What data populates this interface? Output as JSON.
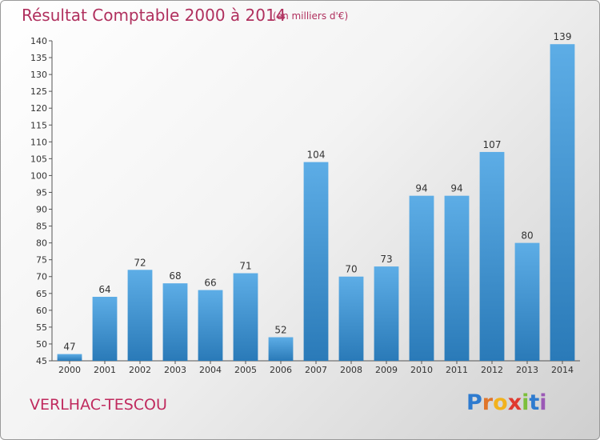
{
  "page": {
    "title": "Résultat Comptable 2000 à 2014",
    "subtitle": "(en milliers d'€)",
    "town": "VERLHAC-TESCOU",
    "logo": {
      "letters": [
        "P",
        "r",
        "o",
        "x",
        "i",
        "t",
        "i"
      ],
      "colors": [
        "#2e7bcf",
        "#e0752a",
        "#f2b21d",
        "#e03a2f",
        "#7cbf3a",
        "#2e7bcf",
        "#9b59b6"
      ]
    }
  },
  "chart_data": {
    "type": "bar",
    "title": "Résultat Comptable 2000 à 2014",
    "subtitle": "(en milliers d'€)",
    "categories": [
      "2000",
      "2001",
      "2002",
      "2003",
      "2004",
      "2005",
      "2006",
      "2007",
      "2008",
      "2009",
      "2010",
      "2011",
      "2012",
      "2013",
      "2014"
    ],
    "values": [
      47,
      64,
      72,
      68,
      66,
      71,
      52,
      104,
      70,
      73,
      94,
      94,
      107,
      80,
      139
    ],
    "value_labels": [
      "47",
      "64",
      "72",
      "68",
      "66",
      "71",
      "52",
      "104",
      "70",
      "73",
      "94",
      "94",
      "107",
      "80",
      "139"
    ],
    "ylim": [
      45,
      140
    ],
    "yticks": [
      45,
      50,
      55,
      60,
      65,
      70,
      75,
      80,
      85,
      90,
      95,
      100,
      105,
      110,
      115,
      120,
      125,
      130,
      135,
      140
    ],
    "ytick_labels": [
      "45",
      "50",
      "55",
      "60",
      "65",
      "70",
      "75",
      "80",
      "85",
      "90",
      "95",
      "100",
      "105",
      "110",
      "115",
      "120",
      "125",
      "130",
      "135",
      "140"
    ],
    "grid": false,
    "bar_color_top": "#5dade6",
    "bar_color_bottom": "#2a7ab8"
  }
}
